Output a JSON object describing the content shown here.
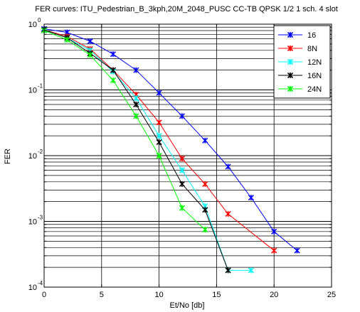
{
  "chart_data": {
    "type": "line",
    "title": "FER curves: ITU_Pedestrian_B_3kph,20M_2048_PUSC CC-TB QPSK 1/2 1 sch. 4 slot",
    "xlabel": "Et/No [db]",
    "ylabel": "FER",
    "xlim": [
      0,
      25
    ],
    "ylim": [
      0.0001,
      1
    ],
    "yscale": "log",
    "x_ticks": [
      "0",
      "5",
      "10",
      "15",
      "20",
      "25"
    ],
    "y_ticks": [
      {
        "base": "10",
        "exp": "0",
        "value": 1
      },
      {
        "base": "10",
        "exp": "-1",
        "value": 0.1
      },
      {
        "base": "10",
        "exp": "-2",
        "value": 0.01
      },
      {
        "base": "10",
        "exp": "-3",
        "value": 0.001
      },
      {
        "base": "10",
        "exp": "-4",
        "value": 0.0001
      }
    ],
    "grid": true,
    "legend_position": "top-right",
    "series": [
      {
        "name": "16",
        "color": "#0000ff",
        "x": [
          0,
          2,
          4,
          6,
          8,
          10,
          12,
          14,
          16,
          18,
          20,
          22
        ],
        "y": [
          0.85,
          0.75,
          0.55,
          0.35,
          0.2,
          0.09,
          0.04,
          0.017,
          0.0068,
          0.0023,
          0.0007,
          0.00036
        ]
      },
      {
        "name": "8N",
        "color": "#ff0000",
        "x": [
          0,
          2,
          4,
          6,
          8,
          10,
          12,
          14,
          16,
          20
        ],
        "y": [
          0.82,
          0.65,
          0.42,
          0.2,
          0.085,
          0.032,
          0.009,
          0.0037,
          0.0013,
          0.00036
        ]
      },
      {
        "name": "12N",
        "color": "#00ffff",
        "x": [
          0,
          2,
          4,
          6,
          8,
          10,
          12,
          14,
          16,
          18
        ],
        "y": [
          0.82,
          0.62,
          0.4,
          0.19,
          0.075,
          0.02,
          0.006,
          0.0017,
          0.00018,
          0.00018
        ]
      },
      {
        "name": "16N",
        "color": "#000000",
        "x": [
          0,
          2,
          4,
          6,
          8,
          10,
          12,
          14,
          16
        ],
        "y": [
          0.82,
          0.62,
          0.36,
          0.2,
          0.06,
          0.016,
          0.0037,
          0.0015,
          0.00018
        ]
      },
      {
        "name": "24N",
        "color": "#00ff00",
        "x": [
          0,
          2,
          4,
          6,
          8,
          10,
          12,
          14
        ],
        "y": [
          0.8,
          0.58,
          0.34,
          0.14,
          0.04,
          0.01,
          0.0016,
          0.00075
        ]
      }
    ]
  }
}
